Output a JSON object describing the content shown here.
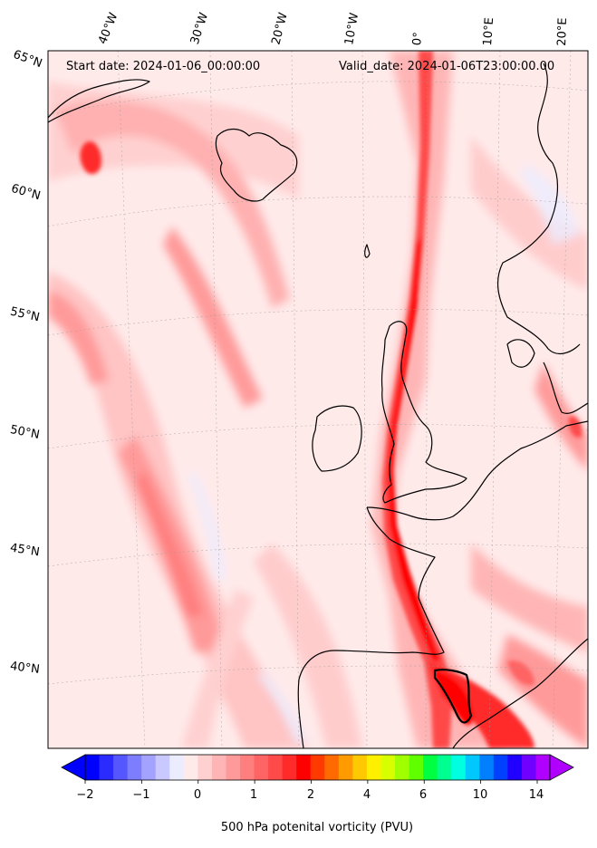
{
  "map": {
    "start_label": "Start date: 2024-01-06_00:00:00",
    "valid_label": "Valid_date: 2024-01-06T23:00:00.00",
    "lon_labels": [
      "40°W",
      "30°W",
      "20°W",
      "10°W",
      "0°",
      "10°E",
      "20°E"
    ],
    "lat_labels": [
      "65°N",
      "60°N",
      "55°N",
      "50°N",
      "45°N",
      "40°N"
    ]
  },
  "colorbar": {
    "title": "500 hPa potenital vorticity (PVU)",
    "tick_labels": [
      "−2",
      "−1",
      "0",
      "1",
      "2",
      "4",
      "6",
      "10",
      "14"
    ],
    "colors": [
      "#0000ff",
      "#2b2bff",
      "#5656ff",
      "#7d7dff",
      "#a3a3ff",
      "#c9c9ff",
      "#ececff",
      "#ffeaea",
      "#ffd0d0",
      "#ffb5b5",
      "#ff9a9a",
      "#ff7f7f",
      "#ff6464",
      "#ff4a4a",
      "#ff2a2a",
      "#ff0000",
      "#ff3a00",
      "#ff6a00",
      "#ff9a00",
      "#ffc800",
      "#fff000",
      "#d8ff00",
      "#a0ff00",
      "#60ff00",
      "#00ff40",
      "#00ff90",
      "#00ffe0",
      "#00c8ff",
      "#0080ff",
      "#0040ff",
      "#2000ff",
      "#7000ff",
      "#b000ff"
    ]
  }
}
